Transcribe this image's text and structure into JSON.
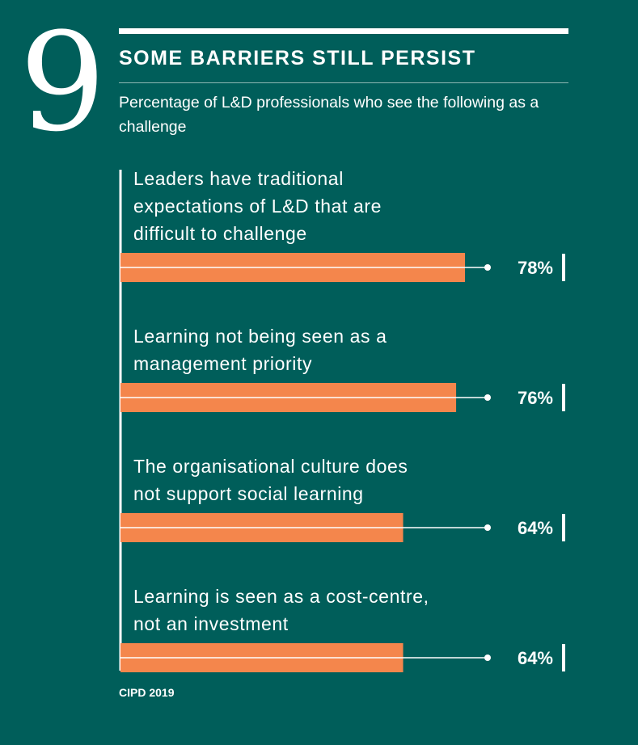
{
  "badge_number": "9",
  "colors": {
    "background": "#005e5a",
    "bar": "#f4864c",
    "text": "#ffffff"
  },
  "chart_data": {
    "type": "bar",
    "orientation": "horizontal",
    "title": "SOME BARRIERS STILL PERSIST",
    "subtitle": "Percentage of L&D professionals who see the following as a challenge",
    "categories": [
      [
        "Leaders have traditional",
        "expectations of L&D that are",
        "difficult to challenge"
      ],
      [
        "Learning not being seen as a",
        "management priority"
      ],
      [
        "The organisational culture does",
        "not support social learning"
      ],
      [
        "Learning is seen as a cost-centre,",
        "not an investment"
      ]
    ],
    "values": [
      78,
      76,
      64,
      64
    ],
    "value_labels": [
      "78%",
      "76%",
      "64%",
      "64%"
    ],
    "unit": "%",
    "xlim": [
      0,
      100
    ],
    "grid": false,
    "legend": false
  },
  "source": "CIPD 2019"
}
